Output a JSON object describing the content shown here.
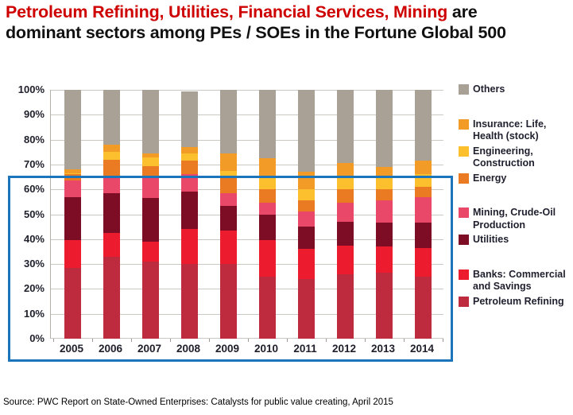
{
  "title": {
    "line1_red": "Petroleum Refining, Utilities, Financial Services, Mining",
    "line1_black": " are",
    "line2": "dominant sectors among PEs / SOEs in the Fortune Global 500"
  },
  "source": "Source: PWC Report on State-Owned Enterprises: Catalysts for public value creating, April 2015",
  "colors": {
    "title_red": "#ce0000",
    "highlight_box_blue": "#1c75bb",
    "gridline_gray": "#cbc8c3",
    "axis_text": "#20202c"
  },
  "chart_data": {
    "type": "bar",
    "stacked": true,
    "grid": true,
    "legend_position": "right",
    "ylim": [
      0,
      100
    ],
    "ytick_labels": [
      "0%",
      "10%",
      "20%",
      "30%",
      "40%",
      "50%",
      "60%",
      "70%",
      "80%",
      "90%",
      "100%"
    ],
    "categories": [
      "2005",
      "2006",
      "2007",
      "2008",
      "2009",
      "2010",
      "2011",
      "2012",
      "2013",
      "2014"
    ],
    "series": [
      {
        "name": "Petroleum Refining",
        "color": "#be2b3e",
        "values": [
          28.5,
          33,
          31,
          30,
          30,
          25,
          24,
          26,
          26.5,
          25
        ]
      },
      {
        "name": "Banks: Commercial and Savings",
        "color": "#ec1c2e",
        "values": [
          11,
          9.5,
          8,
          14,
          13.5,
          14.5,
          12,
          11.5,
          10.5,
          11.5
        ]
      },
      {
        "name": "Utilities",
        "color": "#7d0d25",
        "values": [
          17.5,
          16,
          17.5,
          15,
          10,
          10.5,
          9,
          9.5,
          9.5,
          10
        ]
      },
      {
        "name": "Mining, Crude-Oil Production",
        "color": "#ea4868",
        "values": [
          6.5,
          7,
          8,
          7,
          5,
          4.5,
          6,
          7.5,
          9,
          10.5
        ]
      },
      {
        "name": "Energy",
        "color": "#eb7b23",
        "values": [
          2.5,
          6.5,
          5,
          5.5,
          6.5,
          5.5,
          4.5,
          5.5,
          4.5,
          4
        ]
      },
      {
        "name": "Engineering, Construction",
        "color": "#fcc02e",
        "values": [
          0.5,
          3,
          3.5,
          3,
          2.5,
          5.5,
          4.5,
          5.5,
          4.5,
          5
        ]
      },
      {
        "name": "Insurance: Life, Health (stock)",
        "color": "#f29c27",
        "values": [
          1.5,
          3,
          1.5,
          2.5,
          7,
          7,
          7,
          5,
          4.5,
          5.5
        ]
      },
      {
        "name": "Others",
        "color": "#a9a096",
        "values": [
          32,
          22,
          25.5,
          22.5,
          25.5,
          27.5,
          33,
          29.5,
          31,
          28.5
        ]
      }
    ],
    "legend": [
      {
        "label": "Others",
        "color": "#a9a096",
        "gap_before": false
      },
      {
        "label": "Insurance: Life, Health (stock)",
        "color": "#f29c27",
        "gap_before": true
      },
      {
        "label": "Engineering, Construction",
        "color": "#fcc02e",
        "gap_before": false
      },
      {
        "label": "Energy",
        "color": "#eb7b23",
        "gap_before": false
      },
      {
        "label": "Mining, Crude-Oil Production",
        "color": "#ea4868",
        "gap_before": true
      },
      {
        "label": "Utilities",
        "color": "#7d0d25",
        "gap_before": false
      },
      {
        "label": "Banks: Commercial and Savings",
        "color": "#ec1c2e",
        "gap_before": true
      },
      {
        "label": "Petroleum Refining",
        "color": "#be2b3e",
        "gap_before": false
      }
    ],
    "highlight_box": {
      "color": "#1c75bb",
      "note": "box outlining 0%-65% band across all years"
    }
  }
}
